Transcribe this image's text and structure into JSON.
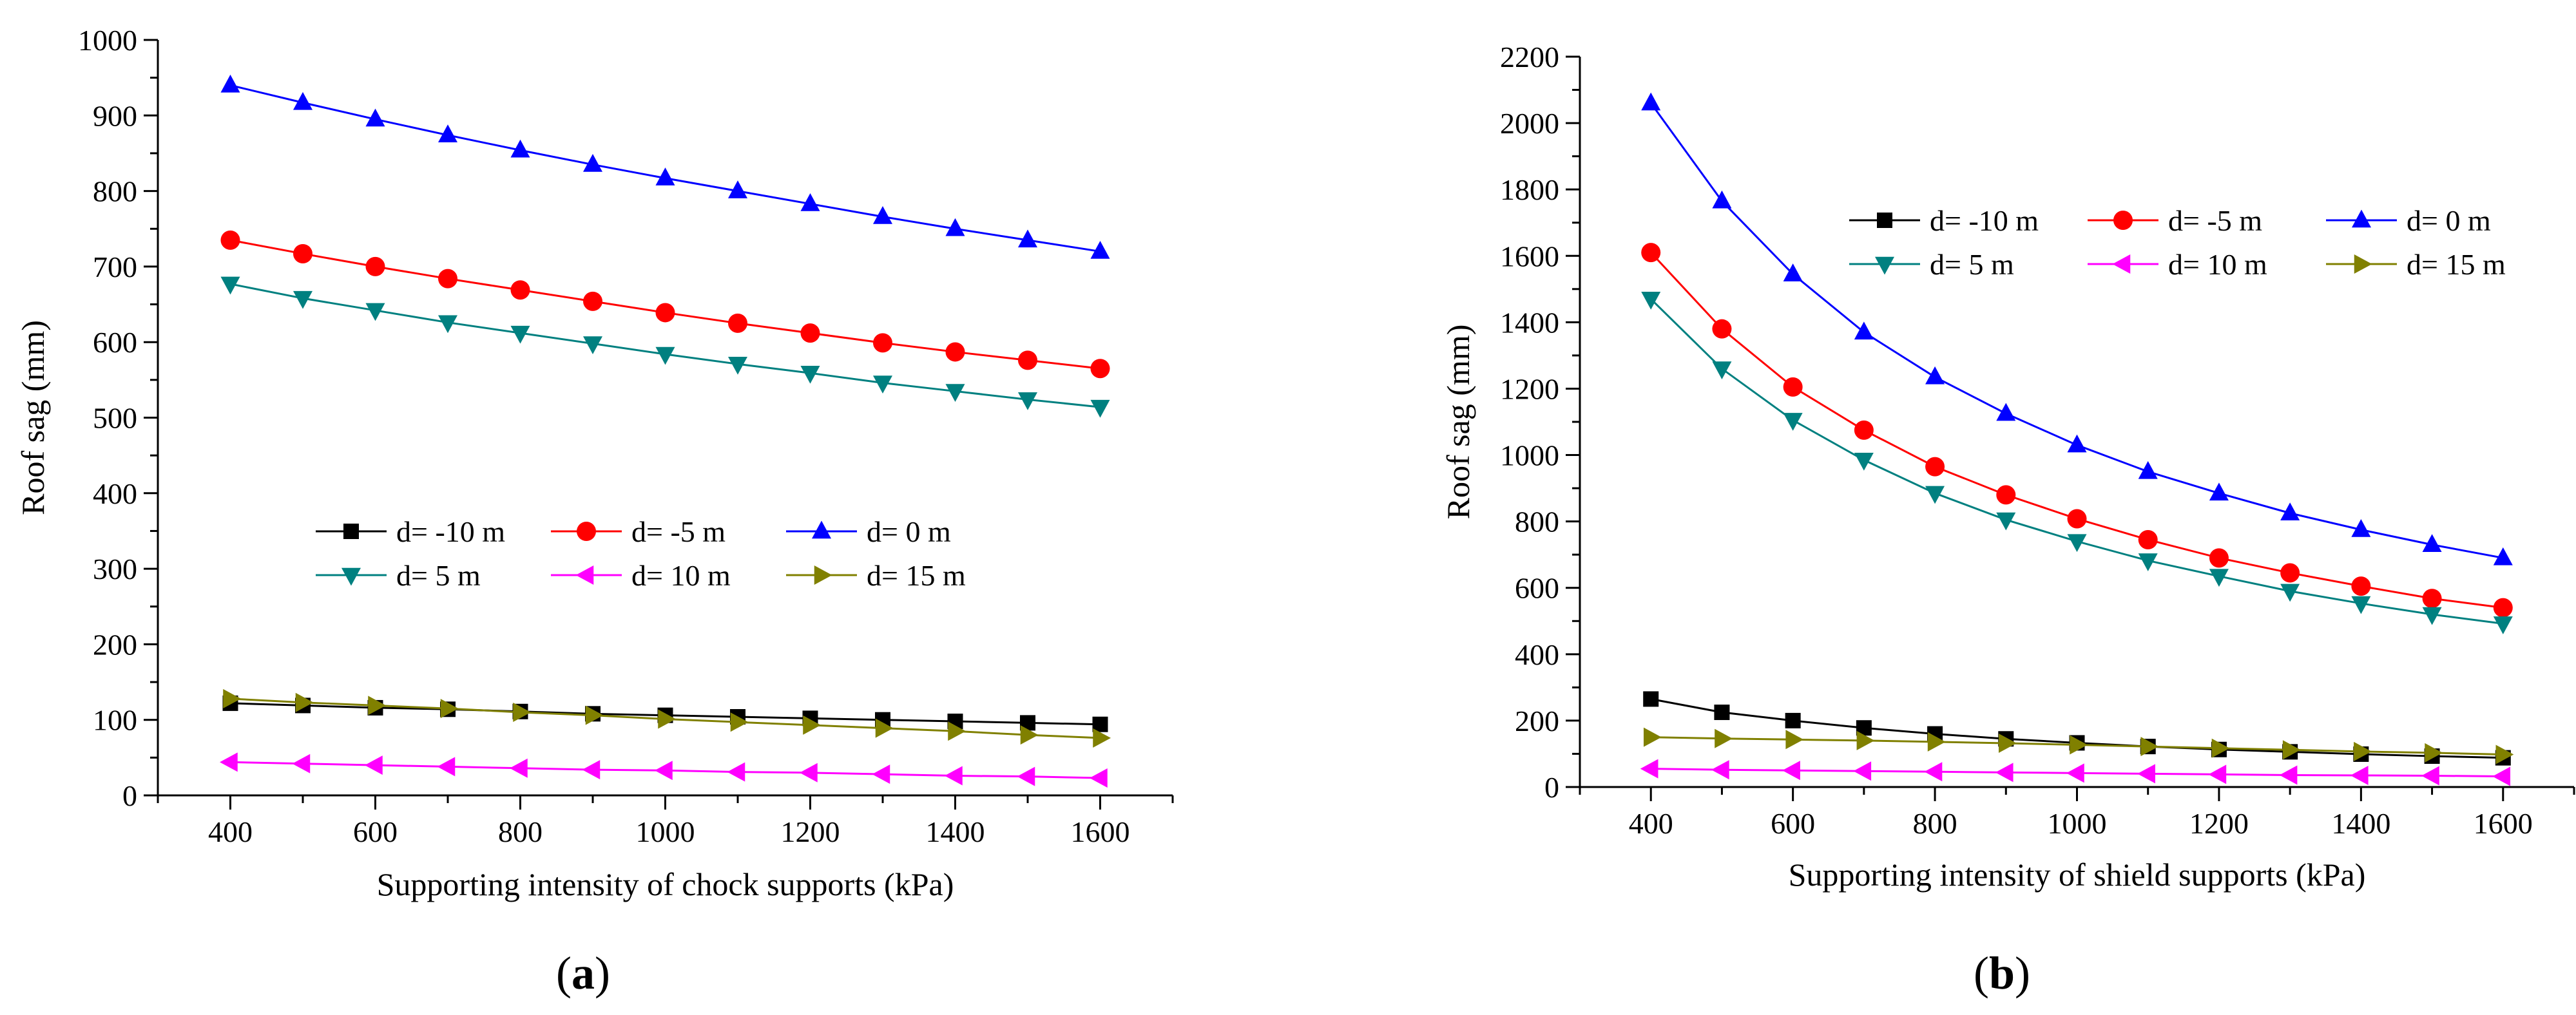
{
  "panels": {
    "a": {
      "caption_open": "(",
      "caption_letter": "a",
      "caption_close": ")"
    },
    "b": {
      "caption_open": "(",
      "caption_letter": "b",
      "caption_close": ")"
    }
  },
  "colors": {
    "black": "#000000",
    "red": "#ff0000",
    "blue": "#0000ff",
    "teal": "#008080",
    "magenta": "#ff00ff",
    "olive": "#808000"
  },
  "chart_data": [
    {
      "type": "line",
      "panel": "a",
      "xlabel": "Supporting intensity of chock supports (kPa)",
      "ylabel": "Roof sag (mm)",
      "xlim": [
        300,
        1700
      ],
      "ylim": [
        0,
        1000
      ],
      "xticks": [
        400,
        600,
        800,
        1000,
        1200,
        1400,
        1600
      ],
      "yticks": [
        0,
        100,
        200,
        300,
        400,
        500,
        600,
        700,
        800,
        900,
        1000
      ],
      "grid": false,
      "legend_position": "center-bottom",
      "x": [
        400,
        500,
        600,
        700,
        800,
        900,
        1000,
        1100,
        1200,
        1300,
        1400,
        1500,
        1600
      ],
      "series": [
        {
          "name": "d= -10 m",
          "color": "#000000",
          "marker": "square",
          "values": [
            122,
            119,
            116,
            114,
            111,
            108,
            106,
            104,
            102,
            100,
            98,
            96,
            94
          ]
        },
        {
          "name": "d= -5 m",
          "color": "#ff0000",
          "marker": "circle",
          "values": [
            735,
            717,
            700,
            684,
            669,
            654,
            639,
            625,
            612,
            599,
            587,
            576,
            565
          ]
        },
        {
          "name": "d= 0 m",
          "color": "#0000ff",
          "marker": "triangle-up",
          "values": [
            940,
            917,
            895,
            874,
            854,
            835,
            817,
            800,
            783,
            766,
            750,
            735,
            720
          ]
        },
        {
          "name": "d= 5 m",
          "color": "#008080",
          "marker": "triangle-down",
          "values": [
            677,
            658,
            642,
            626,
            612,
            598,
            584,
            571,
            559,
            546,
            535,
            524,
            514
          ]
        },
        {
          "name": "d= 10 m",
          "color": "#ff00ff",
          "marker": "triangle-left",
          "values": [
            44,
            42,
            40,
            38,
            36,
            34,
            33,
            31,
            30,
            28,
            26,
            25,
            23
          ]
        },
        {
          "name": "d= 15 m",
          "color": "#808000",
          "marker": "triangle-right",
          "values": [
            128,
            123,
            119,
            115,
            110,
            106,
            101,
            97,
            93,
            89,
            85,
            80,
            76
          ]
        }
      ]
    },
    {
      "type": "line",
      "panel": "b",
      "xlabel": "Supporting intensity of shield supports (kPa)",
      "ylabel": "Roof sag (mm)",
      "xlim": [
        300,
        1700
      ],
      "ylim": [
        0,
        2200
      ],
      "xticks": [
        400,
        600,
        800,
        1000,
        1200,
        1400,
        1600
      ],
      "yticks": [
        0,
        200,
        400,
        600,
        800,
        1000,
        1200,
        1400,
        1600,
        1800,
        2000,
        2200
      ],
      "grid": false,
      "legend_position": "top-right",
      "x": [
        400,
        500,
        600,
        700,
        800,
        900,
        1000,
        1100,
        1200,
        1300,
        1400,
        1500,
        1600
      ],
      "series": [
        {
          "name": "d= -10 m",
          "color": "#000000",
          "marker": "square",
          "values": [
            265,
            225,
            200,
            178,
            160,
            145,
            133,
            122,
            113,
            106,
            99,
            93,
            88
          ]
        },
        {
          "name": "d= -5 m",
          "color": "#ff0000",
          "marker": "circle",
          "values": [
            1610,
            1380,
            1205,
            1075,
            965,
            880,
            808,
            745,
            690,
            645,
            605,
            568,
            540
          ]
        },
        {
          "name": "d= 0 m",
          "color": "#0000ff",
          "marker": "triangle-up",
          "values": [
            2060,
            1765,
            1545,
            1370,
            1235,
            1125,
            1030,
            950,
            885,
            825,
            775,
            730,
            690
          ]
        },
        {
          "name": "d= 5 m",
          "color": "#008080",
          "marker": "triangle-down",
          "values": [
            1470,
            1260,
            1105,
            985,
            885,
            805,
            740,
            682,
            635,
            590,
            553,
            520,
            492
          ]
        },
        {
          "name": "d= 10 m",
          "color": "#ff00ff",
          "marker": "triangle-left",
          "values": [
            55,
            52,
            50,
            48,
            46,
            44,
            42,
            40,
            38,
            36,
            35,
            34,
            32
          ]
        },
        {
          "name": "d= 15 m",
          "color": "#808000",
          "marker": "triangle-right",
          "values": [
            150,
            146,
            143,
            140,
            136,
            132,
            127,
            122,
            117,
            112,
            107,
            103,
            98
          ]
        }
      ]
    }
  ]
}
